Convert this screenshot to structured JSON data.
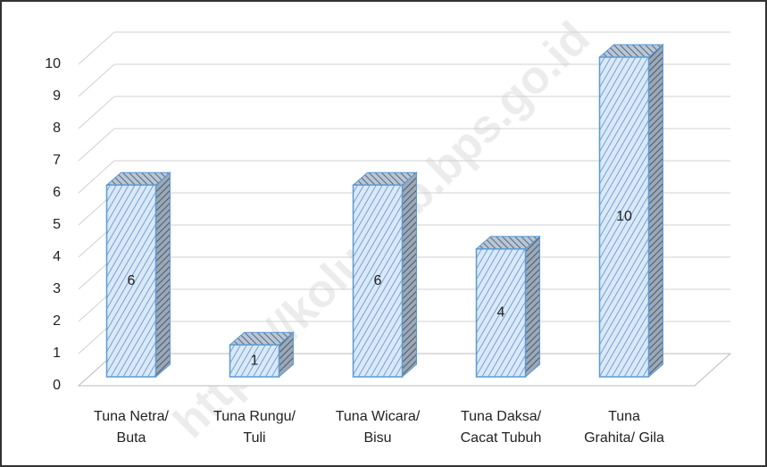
{
  "chart_data": {
    "type": "bar3d",
    "categories": [
      [
        "Tuna Netra/",
        "Buta"
      ],
      [
        "Tuna Rungu/",
        "Tuli"
      ],
      [
        "Tuna Wicara/",
        "Bisu"
      ],
      [
        "Tuna Daksa/",
        "Cacat Tubuh"
      ],
      [
        "Tuna",
        "Grahita/ Gila"
      ]
    ],
    "values": [
      6,
      1,
      6,
      4,
      10
    ],
    "color": "#5b9bd5",
    "ylim": [
      0,
      10
    ],
    "yticks": [
      0,
      1,
      2,
      3,
      4,
      5,
      6,
      7,
      8,
      9,
      10
    ],
    "grid": true,
    "watermark": "https://kolutkab.bps.go.id"
  }
}
